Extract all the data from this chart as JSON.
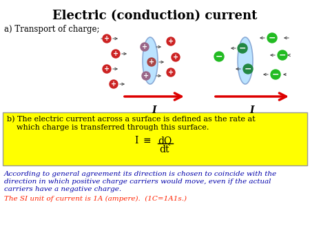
{
  "title": "Electric (conduction) current",
  "title_fontsize": 13,
  "title_fontweight": "bold",
  "bg_color": "#ffffff",
  "label_a": "a) Transport of charge;",
  "box_text_line1": "b) The electric current across a surface is defined as the rate at",
  "box_text_line2": "    which charge is transferred through this surface.",
  "box_bg": "#ffff00",
  "box_border": "#999999",
  "italic_text_line1": "According to general agreement its direction is chosen to coincide with the",
  "italic_text_line2": "direction in which positive charge carriers would move, even if the actual",
  "italic_text_line3": "carriers have a negative charge.",
  "si_unit_text": "The SI unit of current is 1A (ampere).  (1C=1A1s.)",
  "italic_color": "#0000aa",
  "si_color": "#ff2200",
  "plus_circle_color": "#cc2222",
  "minus_circle_color": "#22bb22",
  "ellipse_fill": "#aaddff",
  "ellipse_edge": "#7799cc",
  "arrow_color": "#dd0000",
  "current_label": "I",
  "small_arrow_color": "#444444",
  "figw": 4.5,
  "figh": 3.38,
  "dpi": 100
}
